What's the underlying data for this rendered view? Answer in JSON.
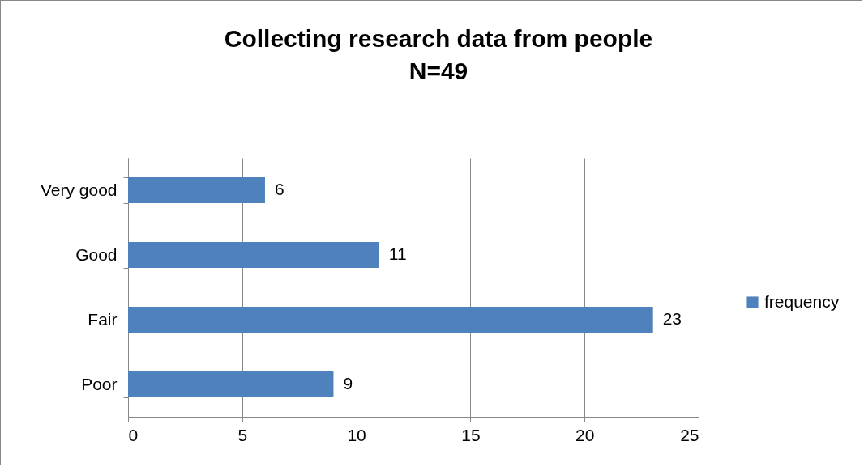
{
  "chart_data": {
    "type": "bar",
    "orientation": "horizontal",
    "title": "Collecting research data from people",
    "subtitle": "N=49",
    "categories": [
      "Very good",
      "Good",
      "Fair",
      "Poor"
    ],
    "series": [
      {
        "name": "frequency",
        "color": "#4f81bd",
        "values": [
          6,
          11,
          23,
          9
        ]
      }
    ],
    "xlim": [
      0,
      25
    ],
    "xticks": [
      0,
      5,
      10,
      15,
      20,
      25
    ],
    "grid": "x",
    "legend": "right",
    "data_labels": true
  }
}
